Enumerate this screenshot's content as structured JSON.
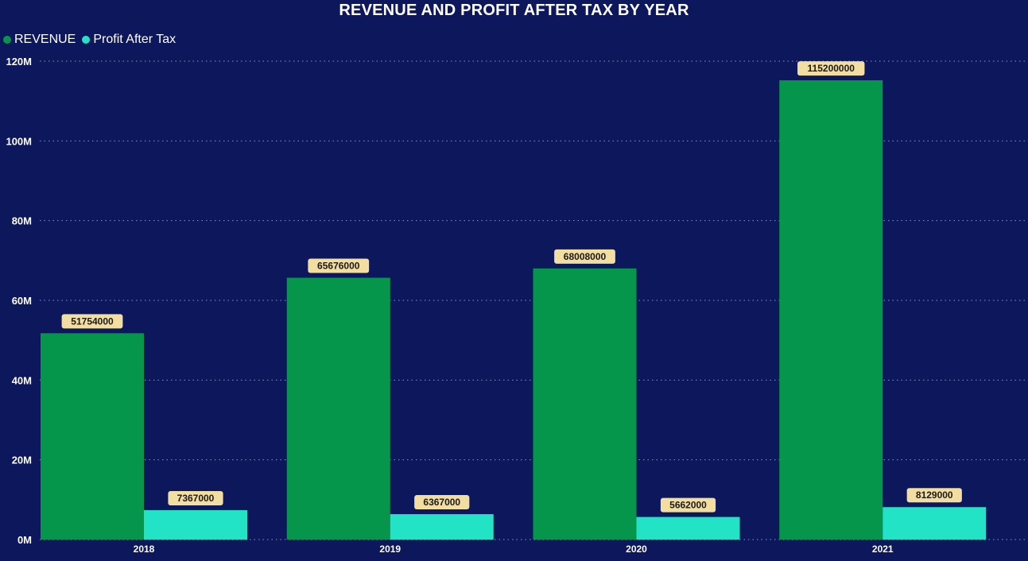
{
  "chart_data": {
    "type": "bar",
    "title": "REVENUE AND PROFIT AFTER TAX BY YEAR",
    "categories": [
      "2018",
      "2019",
      "2020",
      "2021"
    ],
    "series": [
      {
        "name": "REVENUE",
        "color": "#05964b",
        "values": [
          51754000,
          65676000,
          68008000,
          115200000
        ]
      },
      {
        "name": "Profit After Tax",
        "color": "#22e3c5",
        "values": [
          7367000,
          6367000,
          5662000,
          8129000
        ]
      }
    ],
    "data_labels": [
      [
        "51754000",
        "65676000",
        "68008000",
        "115200000"
      ],
      [
        "7367000",
        "6367000",
        "5662000",
        "8129000"
      ]
    ],
    "y_ticks": [
      {
        "value": 0,
        "label": "0M"
      },
      {
        "value": 20000000,
        "label": "20M"
      },
      {
        "value": 40000000,
        "label": "40M"
      },
      {
        "value": 60000000,
        "label": "60M"
      },
      {
        "value": 80000000,
        "label": "80M"
      },
      {
        "value": 100000000,
        "label": "100M"
      },
      {
        "value": 120000000,
        "label": "120M"
      }
    ],
    "ylim": [
      0,
      120000000
    ],
    "grid": true,
    "legend_position": "top-left",
    "background_color": "#0d175b",
    "label_bg_color": "#f2dea0"
  }
}
